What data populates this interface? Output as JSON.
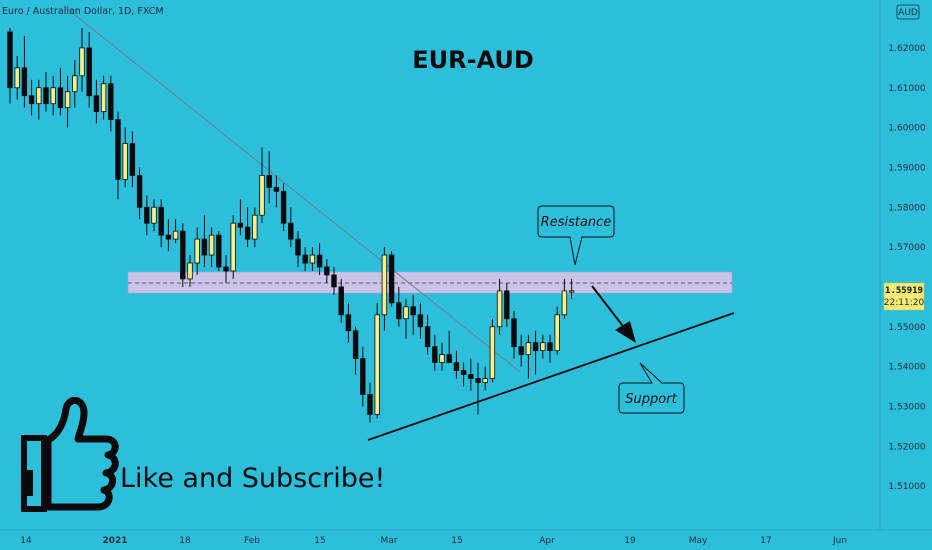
{
  "header": {
    "symbol_text": "Euro / Australian Dollar, 1D, FXCM",
    "currency_badge": "AUD"
  },
  "overlay": {
    "title": "EUR-AUD",
    "resistance_label": "Resistance",
    "support_label": "Support",
    "promo_text": "Like and Subscribe!",
    "promo_icon": "thumbs-up-icon"
  },
  "price_tag": {
    "price": "1.55919",
    "countdown": "22:11:20"
  },
  "colors": {
    "background": "#2bbfdc",
    "candle_up": "#f6f08a",
    "candle_down": "#0a0a0a",
    "zone": "#d9c3e8",
    "trendline": "#6f7d86",
    "tag": "#f2ec74"
  },
  "chart_data": {
    "type": "candlestick",
    "title": "EUR-AUD",
    "ylim": [
      1.505,
      1.625
    ],
    "y_ticks": [
      "1.62000",
      "1.61000",
      "1.60000",
      "1.59000",
      "1.58000",
      "1.57000",
      "1.55000",
      "1.54000",
      "1.53000",
      "1.52000",
      "1.51000"
    ],
    "x_ticks": [
      "14",
      "2021",
      "18",
      "Feb",
      "15",
      "Mar",
      "15",
      "Apr",
      "19",
      "May",
      "17",
      "Jun"
    ],
    "last_price": 1.55919,
    "resistance_zone": [
      1.5595,
      1.5645
    ],
    "levels": [
      {
        "name": "Resistance",
        "value": 1.562
      },
      {
        "name": "Support trendline start",
        "value": 1.5245
      },
      {
        "name": "Support trendline end",
        "value": 1.5535
      }
    ],
    "candles": [
      [
        1.624,
        1.625,
        1.606,
        1.61
      ],
      [
        1.61,
        1.618,
        1.607,
        1.615
      ],
      [
        1.615,
        1.623,
        1.605,
        1.608
      ],
      [
        1.608,
        1.612,
        1.603,
        1.606
      ],
      [
        1.606,
        1.612,
        1.602,
        1.61
      ],
      [
        1.61,
        1.614,
        1.604,
        1.606
      ],
      [
        1.606,
        1.613,
        1.603,
        1.61
      ],
      [
        1.61,
        1.615,
        1.603,
        1.605
      ],
      [
        1.605,
        1.613,
        1.6,
        1.609
      ],
      [
        1.609,
        1.617,
        1.605,
        1.613
      ],
      [
        1.613,
        1.625,
        1.609,
        1.62
      ],
      [
        1.62,
        1.624,
        1.605,
        1.608
      ],
      [
        1.608,
        1.612,
        1.601,
        1.604
      ],
      [
        1.604,
        1.613,
        1.602,
        1.611
      ],
      [
        1.611,
        1.613,
        1.599,
        1.602
      ],
      [
        1.602,
        1.604,
        1.582,
        1.587
      ],
      [
        1.587,
        1.6,
        1.585,
        1.596
      ],
      [
        1.596,
        1.599,
        1.585,
        1.588
      ],
      [
        1.588,
        1.59,
        1.577,
        1.58
      ],
      [
        1.58,
        1.583,
        1.573,
        1.576
      ],
      [
        1.576,
        1.582,
        1.574,
        1.58
      ],
      [
        1.58,
        1.582,
        1.57,
        1.573
      ],
      [
        1.573,
        1.577,
        1.569,
        1.572
      ],
      [
        1.572,
        1.577,
        1.571,
        1.574
      ],
      [
        1.574,
        1.576,
        1.56,
        1.562
      ],
      [
        1.562,
        1.568,
        1.56,
        1.566
      ],
      [
        1.566,
        1.575,
        1.563,
        1.572
      ],
      [
        1.572,
        1.578,
        1.565,
        1.568
      ],
      [
        1.568,
        1.575,
        1.565,
        1.573
      ],
      [
        1.573,
        1.574,
        1.564,
        1.565
      ],
      [
        1.565,
        1.568,
        1.561,
        1.564
      ],
      [
        1.564,
        1.578,
        1.562,
        1.576
      ],
      [
        1.576,
        1.582,
        1.573,
        1.575
      ],
      [
        1.575,
        1.58,
        1.57,
        1.572
      ],
      [
        1.572,
        1.58,
        1.57,
        1.578
      ],
      [
        1.578,
        1.595,
        1.576,
        1.588
      ],
      [
        1.588,
        1.594,
        1.581,
        1.585
      ],
      [
        1.585,
        1.588,
        1.58,
        1.584
      ],
      [
        1.584,
        1.586,
        1.574,
        1.576
      ],
      [
        1.576,
        1.58,
        1.57,
        1.572
      ],
      [
        1.572,
        1.574,
        1.565,
        1.568
      ],
      [
        1.568,
        1.57,
        1.564,
        1.566
      ],
      [
        1.566,
        1.57,
        1.564,
        1.568
      ],
      [
        1.568,
        1.571,
        1.563,
        1.565
      ],
      [
        1.565,
        1.567,
        1.561,
        1.563
      ],
      [
        1.563,
        1.565,
        1.558,
        1.56
      ],
      [
        1.56,
        1.562,
        1.551,
        1.553
      ],
      [
        1.553,
        1.556,
        1.546,
        1.549
      ],
      [
        1.549,
        1.55,
        1.538,
        1.542
      ],
      [
        1.542,
        1.545,
        1.53,
        1.533
      ],
      [
        1.533,
        1.536,
        1.526,
        1.528
      ],
      [
        1.528,
        1.556,
        1.527,
        1.553
      ],
      [
        1.553,
        1.57,
        1.549,
        1.568
      ],
      [
        1.568,
        1.569,
        1.555,
        1.556
      ],
      [
        1.556,
        1.56,
        1.55,
        1.552
      ],
      [
        1.552,
        1.557,
        1.547,
        1.555
      ],
      [
        1.555,
        1.558,
        1.548,
        1.553
      ],
      [
        1.553,
        1.556,
        1.547,
        1.55
      ],
      [
        1.55,
        1.553,
        1.543,
        1.545
      ],
      [
        1.545,
        1.548,
        1.539,
        1.541
      ],
      [
        1.541,
        1.546,
        1.539,
        1.543
      ],
      [
        1.543,
        1.549,
        1.541,
        1.541
      ],
      [
        1.541,
        1.544,
        1.537,
        1.539
      ],
      [
        1.539,
        1.541,
        1.535,
        1.538
      ],
      [
        1.538,
        1.542,
        1.534,
        1.537
      ],
      [
        1.537,
        1.541,
        1.528,
        1.536
      ],
      [
        1.536,
        1.54,
        1.534,
        1.537
      ],
      [
        1.537,
        1.552,
        1.536,
        1.55
      ],
      [
        1.55,
        1.562,
        1.548,
        1.559
      ],
      [
        1.559,
        1.561,
        1.55,
        1.552
      ],
      [
        1.552,
        1.554,
        1.542,
        1.545
      ],
      [
        1.545,
        1.548,
        1.54,
        1.543
      ],
      [
        1.543,
        1.548,
        1.537,
        1.546
      ],
      [
        1.546,
        1.549,
        1.538,
        1.544
      ],
      [
        1.544,
        1.548,
        1.542,
        1.546
      ],
      [
        1.546,
        1.548,
        1.541,
        1.544
      ],
      [
        1.544,
        1.555,
        1.543,
        1.553
      ],
      [
        1.553,
        1.562,
        1.552,
        1.559
      ],
      [
        1.559,
        1.562,
        1.557,
        1.559
      ]
    ]
  }
}
